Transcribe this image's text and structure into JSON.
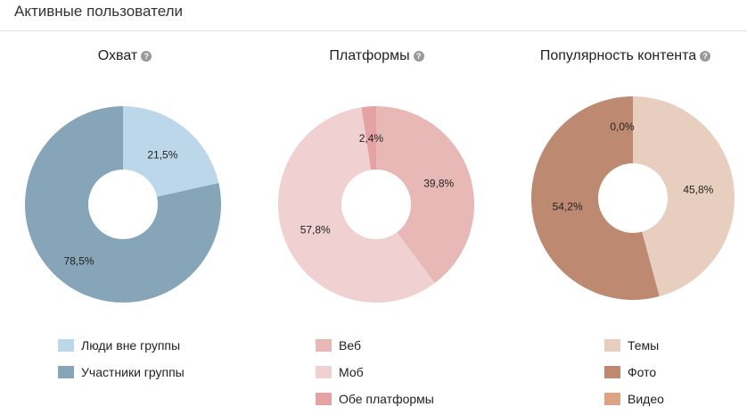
{
  "header": {
    "title": "Активные пользователи"
  },
  "chart_data": [
    {
      "type": "pie",
      "title": "Охват",
      "categories": [
        "Люди вне группы",
        "Участники группы"
      ],
      "values": [
        21.5,
        78.5
      ],
      "data_labels": [
        "21,5%",
        "78,5%"
      ],
      "colors": [
        "#bcd7ea",
        "#87a5b8"
      ],
      "legend_position": "bottom"
    },
    {
      "type": "pie",
      "title": "Платформы",
      "categories": [
        "Веб",
        "Моб",
        "Обе платформы"
      ],
      "values": [
        39.8,
        57.8,
        2.4
      ],
      "data_labels": [
        "39,8%",
        "57,8%",
        "2,4%"
      ],
      "colors": [
        "#e8b8b7",
        "#f0d0d1",
        "#e4a3a2"
      ],
      "legend_position": "bottom"
    },
    {
      "type": "pie",
      "title": "Популярность контента",
      "categories": [
        "Темы",
        "Фото",
        "Видео"
      ],
      "values": [
        45.8,
        54.2,
        0.0
      ],
      "data_labels": [
        "45,8%",
        "54,2%",
        "0,0%"
      ],
      "colors": [
        "#e8cebe",
        "#bd8a71",
        "#dca384"
      ],
      "legend_position": "bottom"
    }
  ]
}
